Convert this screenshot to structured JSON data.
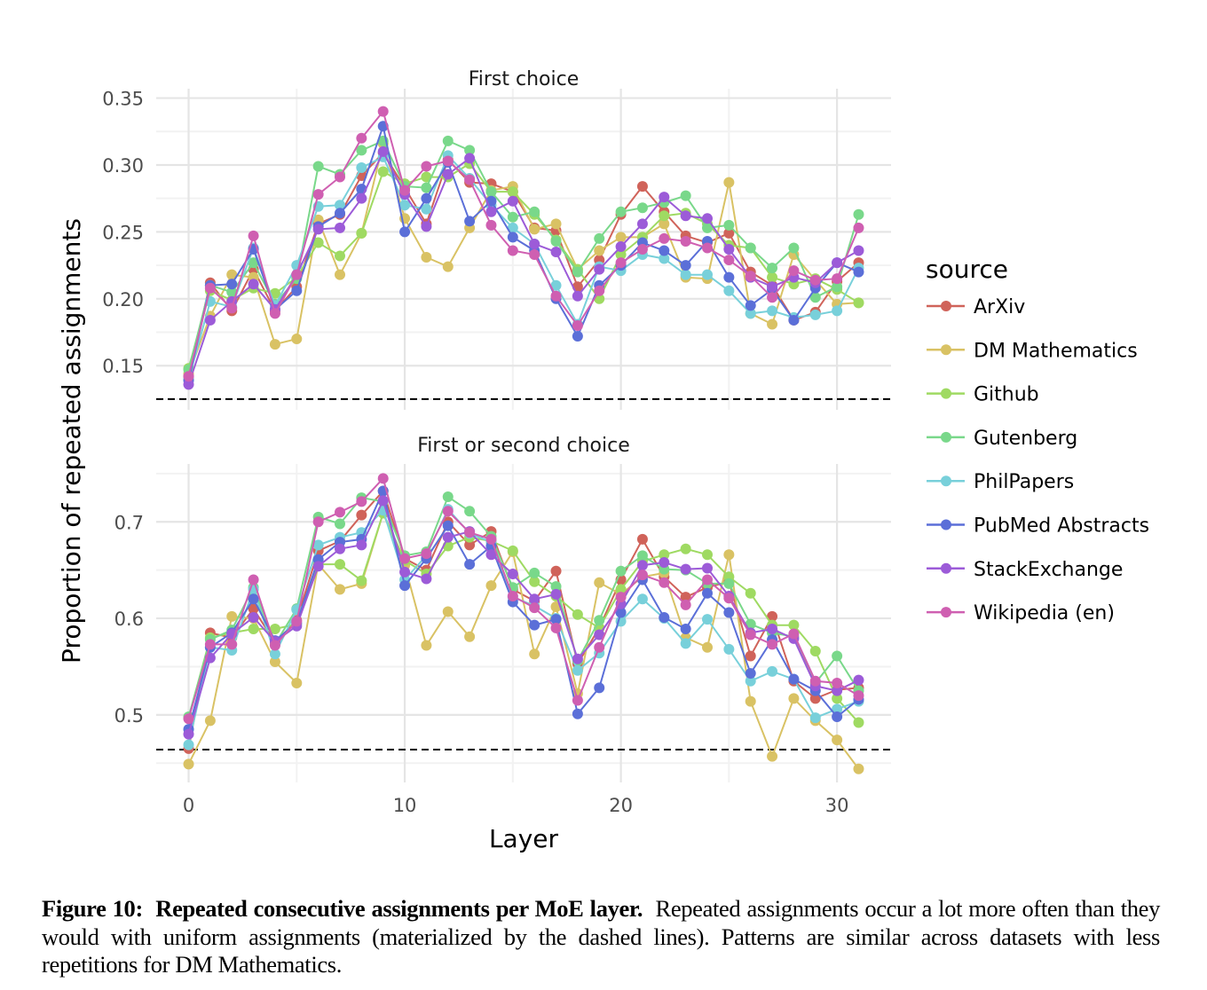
{
  "chart_data": {
    "type": "line",
    "xlabel": "Layer",
    "ylabel": "Proportion of repeated assignments",
    "x": [
      0,
      1,
      2,
      3,
      4,
      5,
      6,
      7,
      8,
      9,
      10,
      11,
      12,
      13,
      14,
      15,
      16,
      17,
      18,
      19,
      20,
      21,
      22,
      23,
      24,
      25,
      26,
      27,
      28,
      29,
      30,
      31
    ],
    "xticks": [
      0,
      10,
      20,
      30
    ],
    "xlim": [
      -1.5,
      32.5
    ],
    "grid": true,
    "legend": {
      "title": "source",
      "placement": "right",
      "entries": [
        "ArXiv",
        "DM Mathematics",
        "Github",
        "Gutenberg",
        "PhilPapers",
        "PubMed Abstracts",
        "StackExchange",
        "Wikipedia (en)"
      ]
    },
    "colors": {
      "ArXiv": "#d0635a",
      "DM Mathematics": "#d9c264",
      "Github": "#9fda62",
      "Gutenberg": "#79d88a",
      "PhilPapers": "#78d0da",
      "PubMed Abstracts": "#5b6fd8",
      "StackExchange": "#9c5bd8",
      "Wikipedia (en)": "#cf5fb1"
    },
    "panels": [
      {
        "title": "First choice",
        "ylim": [
          0.117,
          0.357
        ],
        "yticks": [
          "0.15",
          "0.20",
          "0.25",
          "0.30",
          "0.35"
        ],
        "reference_line": 0.125,
        "series": [
          {
            "name": "ArXiv",
            "values": [
              0.142,
              0.212,
              0.191,
              0.222,
              0.191,
              0.209,
              0.256,
              0.263,
              0.292,
              0.309,
              0.283,
              0.256,
              0.304,
              0.287,
              0.286,
              0.28,
              0.253,
              0.251,
              0.209,
              0.229,
              0.263,
              0.284,
              0.265,
              0.247,
              0.242,
              0.249,
              0.22,
              0.21,
              0.184,
              0.19,
              0.213,
              0.227
            ]
          },
          {
            "name": "DM Mathematics",
            "values": [
              0.144,
              0.187,
              0.218,
              0.216,
              0.166,
              0.17,
              0.259,
              0.218,
              0.249,
              0.316,
              0.26,
              0.231,
              0.224,
              0.253,
              0.281,
              0.284,
              0.252,
              0.256,
              0.222,
              0.236,
              0.246,
              0.246,
              0.256,
              0.216,
              0.215,
              0.287,
              0.189,
              0.181,
              0.233,
              0.214,
              0.196,
              0.197
            ]
          },
          {
            "name": "Github",
            "values": [
              0.148,
              0.206,
              0.199,
              0.208,
              0.204,
              0.216,
              0.242,
              0.232,
              0.249,
              0.295,
              0.286,
              0.291,
              0.291,
              0.301,
              0.28,
              0.28,
              0.263,
              0.244,
              0.222,
              0.2,
              0.233,
              0.246,
              0.262,
              0.264,
              0.256,
              0.24,
              0.238,
              0.216,
              0.211,
              0.215,
              0.207,
              0.197
            ]
          },
          {
            "name": "Gutenberg",
            "values": [
              0.147,
              0.21,
              0.205,
              0.227,
              0.196,
              0.215,
              0.299,
              0.293,
              0.311,
              0.318,
              0.284,
              0.283,
              0.318,
              0.311,
              0.28,
              0.261,
              0.265,
              0.243,
              0.22,
              0.245,
              0.265,
              0.268,
              0.272,
              0.277,
              0.253,
              0.255,
              0.238,
              0.223,
              0.238,
              0.201,
              0.209,
              0.263
            ]
          },
          {
            "name": "PhilPapers",
            "values": [
              0.14,
              0.198,
              0.194,
              0.238,
              0.195,
              0.225,
              0.269,
              0.27,
              0.298,
              0.306,
              0.27,
              0.267,
              0.307,
              0.29,
              0.27,
              0.253,
              0.241,
              0.21,
              0.181,
              0.224,
              0.221,
              0.233,
              0.23,
              0.218,
              0.218,
              0.206,
              0.189,
              0.191,
              0.186,
              0.188,
              0.191,
              0.223
            ]
          },
          {
            "name": "PubMed Abstracts",
            "values": [
              0.139,
              0.21,
              0.211,
              0.237,
              0.192,
              0.206,
              0.254,
              0.264,
              0.282,
              0.329,
              0.25,
              0.275,
              0.302,
              0.258,
              0.273,
              0.246,
              0.236,
              0.2,
              0.172,
              0.21,
              0.225,
              0.242,
              0.236,
              0.225,
              0.243,
              0.216,
              0.195,
              0.207,
              0.184,
              0.208,
              0.227,
              0.22
            ]
          },
          {
            "name": "StackExchange",
            "values": [
              0.136,
              0.184,
              0.198,
              0.211,
              0.192,
              0.218,
              0.252,
              0.253,
              0.275,
              0.31,
              0.278,
              0.254,
              0.293,
              0.305,
              0.265,
              0.273,
              0.241,
              0.235,
              0.202,
              0.222,
              0.239,
              0.256,
              0.276,
              0.262,
              0.26,
              0.237,
              0.216,
              0.209,
              0.216,
              0.212,
              0.227,
              0.236
            ]
          },
          {
            "name": "Wikipedia (en)",
            "values": [
              0.142,
              0.208,
              0.193,
              0.247,
              0.189,
              0.218,
              0.278,
              0.291,
              0.32,
              0.34,
              0.281,
              0.299,
              0.303,
              0.289,
              0.255,
              0.236,
              0.233,
              0.202,
              0.18,
              0.206,
              0.227,
              0.237,
              0.245,
              0.243,
              0.238,
              0.229,
              0.217,
              0.201,
              0.221,
              0.214,
              0.215,
              0.253
            ]
          }
        ]
      },
      {
        "title": "First or second choice",
        "ylim": [
          0.43,
          0.76
        ],
        "yticks": [
          "0.5",
          "0.6",
          "0.7"
        ],
        "reference_line": 0.464,
        "series": [
          {
            "name": "ArXiv",
            "values": [
              0.465,
              0.585,
              0.58,
              0.61,
              0.575,
              0.598,
              0.67,
              0.68,
              0.707,
              0.732,
              0.662,
              0.65,
              0.7,
              0.676,
              0.69,
              0.63,
              0.618,
              0.649,
              0.553,
              0.59,
              0.64,
              0.682,
              0.643,
              0.622,
              0.632,
              0.638,
              0.561,
              0.602,
              0.535,
              0.517,
              0.526,
              0.528
            ]
          },
          {
            "name": "DM Mathematics",
            "values": [
              0.449,
              0.494,
              0.602,
              0.6,
              0.555,
              0.533,
              0.656,
              0.63,
              0.636,
              0.709,
              0.655,
              0.572,
              0.607,
              0.581,
              0.634,
              0.669,
              0.563,
              0.612,
              0.522,
              0.637,
              0.625,
              0.643,
              0.647,
              0.58,
              0.57,
              0.666,
              0.514,
              0.457,
              0.517,
              0.494,
              0.474,
              0.444
            ]
          },
          {
            "name": "Github",
            "values": [
              0.497,
              0.58,
              0.585,
              0.589,
              0.589,
              0.594,
              0.656,
              0.656,
              0.639,
              0.709,
              0.66,
              0.646,
              0.675,
              0.684,
              0.68,
              0.67,
              0.638,
              0.623,
              0.604,
              0.59,
              0.63,
              0.659,
              0.666,
              0.672,
              0.666,
              0.643,
              0.626,
              0.593,
              0.593,
              0.566,
              0.517,
              0.492
            ]
          },
          {
            "name": "Gutenberg",
            "values": [
              0.498,
              0.578,
              0.588,
              0.632,
              0.573,
              0.61,
              0.705,
              0.698,
              0.725,
              0.721,
              0.665,
              0.669,
              0.726,
              0.711,
              0.685,
              0.632,
              0.647,
              0.633,
              0.556,
              0.598,
              0.649,
              0.665,
              0.651,
              0.65,
              0.636,
              0.636,
              0.594,
              0.585,
              0.581,
              0.533,
              0.561,
              0.525
            ]
          },
          {
            "name": "PhilPapers",
            "values": [
              0.469,
              0.57,
              0.567,
              0.63,
              0.563,
              0.609,
              0.676,
              0.684,
              0.689,
              0.712,
              0.64,
              0.665,
              0.713,
              0.688,
              0.679,
              0.622,
              0.613,
              0.6,
              0.546,
              0.564,
              0.597,
              0.62,
              0.6,
              0.574,
              0.599,
              0.568,
              0.535,
              0.545,
              0.537,
              0.497,
              0.506,
              0.514
            ]
          },
          {
            "name": "PubMed Abstracts",
            "values": [
              0.485,
              0.57,
              0.585,
              0.62,
              0.577,
              0.595,
              0.661,
              0.679,
              0.682,
              0.732,
              0.634,
              0.662,
              0.696,
              0.656,
              0.675,
              0.617,
              0.593,
              0.599,
              0.501,
              0.528,
              0.606,
              0.64,
              0.601,
              0.589,
              0.626,
              0.606,
              0.543,
              0.578,
              0.537,
              0.525,
              0.498,
              0.516
            ]
          },
          {
            "name": "StackExchange",
            "values": [
              0.48,
              0.559,
              0.584,
              0.601,
              0.576,
              0.592,
              0.654,
              0.672,
              0.676,
              0.722,
              0.648,
              0.641,
              0.684,
              0.69,
              0.666,
              0.646,
              0.62,
              0.625,
              0.558,
              0.583,
              0.615,
              0.655,
              0.658,
              0.651,
              0.652,
              0.623,
              0.585,
              0.589,
              0.579,
              0.53,
              0.525,
              0.536
            ]
          },
          {
            "name": "Wikipedia (en)",
            "values": [
              0.496,
              0.573,
              0.573,
              0.64,
              0.572,
              0.597,
              0.7,
              0.71,
              0.721,
              0.745,
              0.662,
              0.667,
              0.711,
              0.689,
              0.682,
              0.623,
              0.611,
              0.59,
              0.515,
              0.57,
              0.622,
              0.645,
              0.637,
              0.614,
              0.64,
              0.621,
              0.583,
              0.573,
              0.584,
              0.535,
              0.533,
              0.52
            ]
          }
        ]
      }
    ]
  },
  "caption": {
    "label": "Figure 10:",
    "bold_title": "Repeated consecutive assignments per MoE layer.",
    "text": "Repeated assignments occur a lot more often than they would with uniform assignments (materialized by the dashed lines). Patterns are similar across datasets with less repetitions for DM Mathematics."
  }
}
